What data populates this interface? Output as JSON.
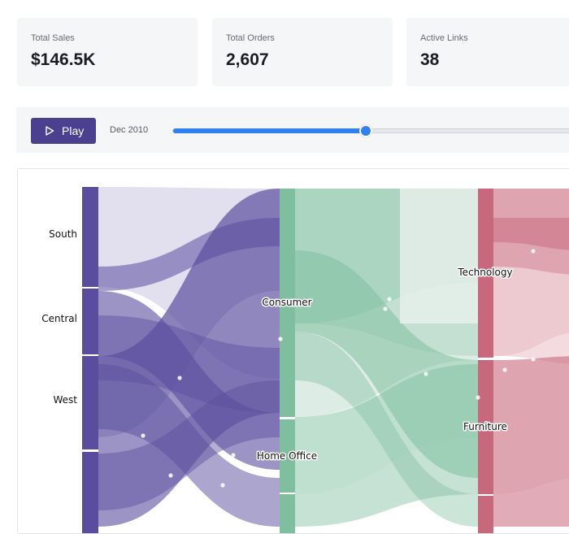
{
  "kpis": [
    {
      "label": "Total Sales",
      "value": "$146.5K"
    },
    {
      "label": "Total Orders",
      "value": "2,607"
    },
    {
      "label": "Active Links",
      "value": "38"
    }
  ],
  "controls": {
    "play_label": "Play",
    "date": "Dec 2010",
    "timeline_progress": 0.455
  },
  "colors": {
    "region": "#5a4d9e",
    "segment": "#7fbf9f",
    "category": "#c8687c",
    "accent": "#2f80f0",
    "play_button": "#4b3f8f"
  },
  "chart_data": {
    "type": "sankey",
    "columns": [
      {
        "key": "region",
        "nodes": [
          "South",
          "Central",
          "West",
          ""
        ]
      },
      {
        "key": "segment",
        "nodes": [
          "Consumer",
          "Home Office"
        ]
      },
      {
        "key": "category",
        "nodes": [
          "Technology",
          "Furniture"
        ]
      }
    ]
  }
}
